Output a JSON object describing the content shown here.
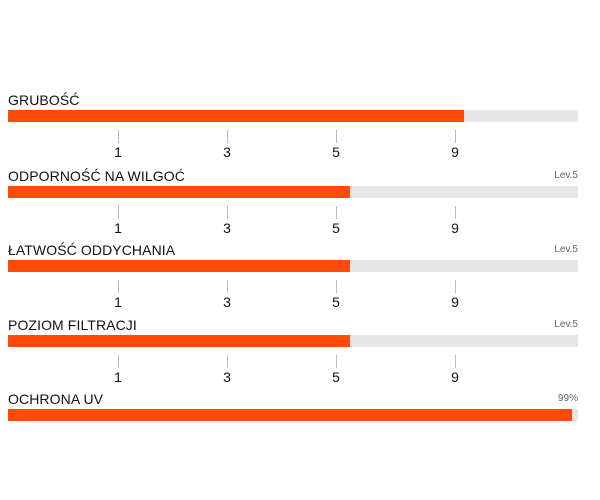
{
  "accent_color": "#ff4a08",
  "track_color": "#e7e7e7",
  "metrics": [
    {
      "title": "GRUBOŚĆ",
      "value_label": "",
      "fill_fraction": 0.8,
      "scale": [
        "1",
        "3",
        "5",
        "9"
      ]
    },
    {
      "title": "ODPORNOŚĆ NA WILGOĆ",
      "value_label": "Lev.5",
      "fill_fraction": 0.6,
      "scale": [
        "1",
        "3",
        "5",
        "9"
      ]
    },
    {
      "title": "ŁATWOŚĆ ODDYCHANIA",
      "value_label": "Lev.5",
      "fill_fraction": 0.6,
      "scale": [
        "1",
        "3",
        "5",
        "9"
      ]
    },
    {
      "title": "POZIOM FILTRACJI",
      "value_label": "Lev.5",
      "fill_fraction": 0.6,
      "scale": [
        "1",
        "3",
        "5",
        "9"
      ]
    },
    {
      "title": "OCHRONA UV",
      "value_label": "99%",
      "fill_fraction": 0.99,
      "scale": []
    }
  ]
}
